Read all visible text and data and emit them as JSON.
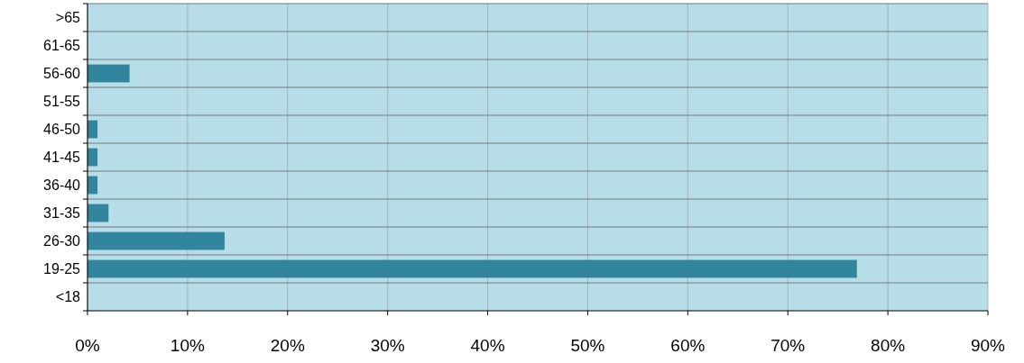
{
  "chart_data": {
    "type": "bar",
    "orientation": "horizontal",
    "categories": [
      ">65",
      "61-65",
      "56-60",
      "51-55",
      "46-50",
      "41-45",
      "36-40",
      "31-35",
      "26-30",
      "19-25",
      "<18"
    ],
    "values": [
      0,
      0,
      4.2,
      0,
      1.0,
      1.0,
      1.0,
      2.1,
      13.7,
      76.9,
      0
    ],
    "color": "#31859c",
    "xlim": [
      0,
      90
    ],
    "xticks": [
      {
        "value": 0,
        "label": "0%"
      },
      {
        "value": 10,
        "label": "10%"
      },
      {
        "value": 20,
        "label": "20%"
      },
      {
        "value": 30,
        "label": "30%"
      },
      {
        "value": 40,
        "label": "40%"
      },
      {
        "value": 50,
        "label": "50%"
      },
      {
        "value": 60,
        "label": "60%"
      },
      {
        "value": 70,
        "label": "70%"
      },
      {
        "value": 80,
        "label": "80%"
      },
      {
        "value": 90,
        "label": "90%"
      }
    ],
    "grid": "x"
  }
}
